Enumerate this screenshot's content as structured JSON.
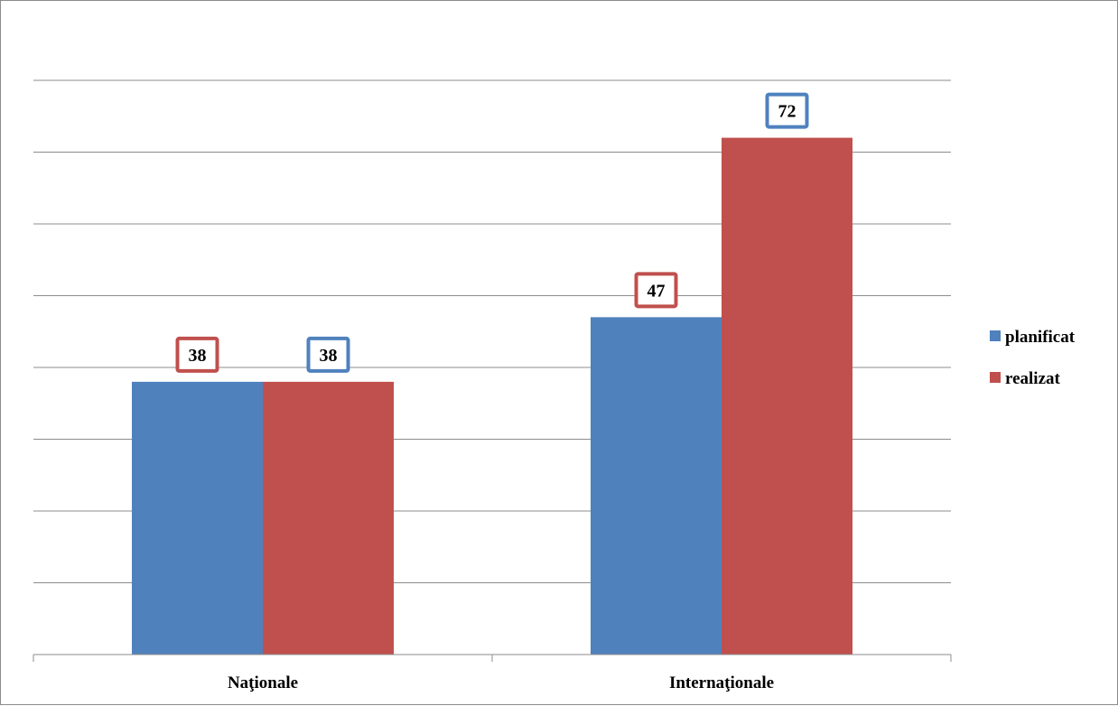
{
  "chart_data": {
    "type": "bar",
    "categories": [
      "Naţionale",
      "Internaţionale"
    ],
    "series": [
      {
        "name": "planificat",
        "values": [
          38,
          47
        ],
        "color": "#4F81BD"
      },
      {
        "name": "realizat",
        "values": [
          38,
          72
        ],
        "color": "#C0504D"
      }
    ],
    "data_label_border_colors": [
      [
        "#C0504D",
        "#4F81BD"
      ],
      [
        "#C0504D",
        "#4F81BD"
      ]
    ],
    "title": "",
    "xlabel": "",
    "ylabel": "",
    "ylim": [
      0,
      80
    ],
    "y_axis_labels_shown": false,
    "grid": true,
    "legend_position": "right"
  }
}
